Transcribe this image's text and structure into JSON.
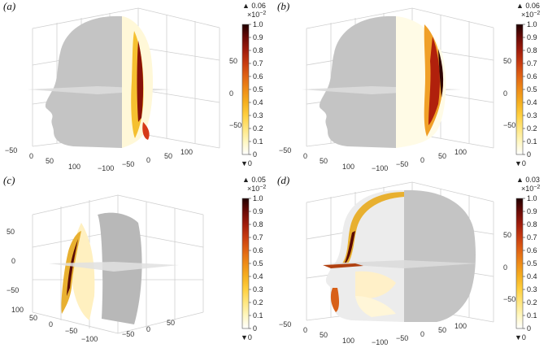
{
  "figure": {
    "panels": [
      {
        "label": "(a)",
        "colorbar": {
          "max": "▲ 0.06",
          "scale": "×10",
          "exp": "−2",
          "ticks": [
            "1.0",
            "0.9",
            "0.8",
            "0.7",
            "0.6",
            "0.5",
            "0.4",
            "0.3",
            "0.2",
            "0.1",
            "0"
          ],
          "min": "▼0"
        },
        "axis_ticks": {
          "z": [
            "50",
            "0",
            "−50"
          ],
          "x": [
            "−50",
            "0",
            "50",
            "100"
          ],
          "y": [
            "−100",
            "−50",
            "0",
            "50",
            "100"
          ]
        }
      },
      {
        "label": "(b)",
        "colorbar": {
          "max": "▲ 0.06",
          "scale": "×10",
          "exp": "−2",
          "ticks": [
            "1.0",
            "0.9",
            "0.8",
            "0.7",
            "0.6",
            "0.5",
            "0.4",
            "0.3",
            "0.2",
            "0.1",
            "0"
          ],
          "min": "▼0"
        },
        "axis_ticks": {
          "z": [
            "50",
            "0",
            "−50"
          ],
          "x": [
            "−50",
            "0",
            "50",
            "100"
          ],
          "y": [
            "−100",
            "−50",
            "0",
            "50",
            "100"
          ]
        }
      },
      {
        "label": "(c)",
        "colorbar": {
          "max": "▲ 0.05",
          "scale": "×10",
          "exp": "−2",
          "ticks": [
            "1.0",
            "0.9",
            "0.8",
            "0.7",
            "0.6",
            "0.5",
            "0.4",
            "0.3",
            "0.2",
            "0.1",
            "0"
          ],
          "min": "▼0"
        },
        "axis_ticks": {
          "z": [
            "50",
            "0",
            "−50"
          ],
          "x": [
            "100",
            "50",
            "0",
            "−50"
          ],
          "y": [
            "−100",
            "−50",
            "0",
            "50"
          ]
        }
      },
      {
        "label": "(d)",
        "colorbar": {
          "max": "▲ 0.03",
          "scale": "×10",
          "exp": "−2",
          "ticks": [
            "1.0",
            "0.9",
            "0.8",
            "0.7",
            "0.6",
            "0.5",
            "0.4",
            "0.3",
            "0.2",
            "0.1",
            "0"
          ],
          "min": "▼0"
        },
        "axis_ticks": {
          "z": [
            "50",
            "0",
            "−50"
          ],
          "x": [
            "−50",
            "0",
            "50",
            "100"
          ],
          "y": [
            "−100",
            "−50",
            "0",
            "50",
            "100"
          ]
        }
      }
    ],
    "colormap": [
      "#ffffff",
      "#fff7c0",
      "#ffe680",
      "#ffd040",
      "#f5b020",
      "#ee8c18",
      "#e06414",
      "#c83c10",
      "#a01c0c",
      "#6a0a06",
      "#200000"
    ]
  }
}
